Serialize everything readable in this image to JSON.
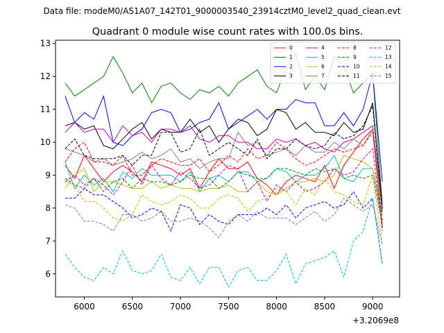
{
  "chart_data": {
    "type": "line",
    "suptitle": "Data file: modeM0/AS1A07_142T01_9000003540_23914cztM0_level2_quad_clean.evt",
    "title": "Quadrant 0 module wise count rates with 100.0s bins.",
    "xlabel": "",
    "ylabel": "",
    "x_offset_label": "+3.2069e8",
    "xlim": [
      5700,
      9280
    ],
    "ylim": [
      5.3,
      13.1
    ],
    "xticks": [
      6000,
      6500,
      7000,
      7500,
      8000,
      8500,
      9000
    ],
    "xtick_labels": [
      "6000",
      "6500",
      "7000",
      "7500",
      "8000",
      "8500",
      "9000"
    ],
    "yticks": [
      6,
      7,
      8,
      9,
      10,
      11,
      12,
      13
    ],
    "ytick_labels": [
      "6",
      "7",
      "8",
      "9",
      "10",
      "11",
      "12",
      "13"
    ],
    "legend": {
      "location": "upper-right",
      "columns": 4
    },
    "x": [
      5800,
      5900,
      6000,
      6100,
      6200,
      6300,
      6400,
      6500,
      6600,
      6700,
      6800,
      6900,
      7000,
      7100,
      7200,
      7300,
      7400,
      7500,
      7600,
      7700,
      7800,
      7900,
      8000,
      8100,
      8200,
      8300,
      8400,
      8500,
      8600,
      8700,
      8800,
      8900,
      9000,
      9100
    ],
    "series": [
      {
        "name": "0",
        "color": "#ff0000",
        "dash": "solid",
        "values": [
          9.3,
          8.9,
          9.6,
          9.2,
          8.8,
          9.1,
          9.3,
          9.1,
          8.8,
          9.4,
          9.3,
          9.2,
          9.0,
          9.2,
          8.6,
          9.1,
          9.5,
          9.2,
          9.2,
          9.4,
          8.9,
          8.7,
          8.4,
          8.8,
          9.0,
          8.9,
          8.8,
          9.3,
          8.6,
          9.3,
          9.7,
          10.1,
          10.4,
          7.4
        ]
      },
      {
        "name": "1",
        "color": "#008000",
        "dash": "solid",
        "values": [
          11.8,
          11.4,
          11.6,
          11.8,
          12.0,
          12.6,
          12.1,
          11.5,
          11.8,
          11.2,
          11.7,
          11.8,
          11.5,
          11.3,
          11.6,
          11.5,
          11.7,
          11.4,
          11.8,
          12.0,
          12.2,
          11.7,
          11.5,
          12.3,
          12.7,
          11.6,
          12.0,
          11.6,
          12.6,
          12.3,
          11.5,
          11.8,
          12.1,
          8.1
        ]
      },
      {
        "name": "2",
        "color": "#0000ff",
        "dash": "solid",
        "values": [
          11.4,
          10.6,
          10.9,
          10.7,
          11.4,
          10.0,
          9.9,
          10.2,
          10.4,
          10.9,
          11.0,
          10.9,
          10.3,
          10.4,
          10.6,
          10.7,
          11.2,
          10.4,
          10.6,
          10.8,
          11.0,
          10.7,
          11.0,
          11.0,
          11.3,
          11.2,
          11.2,
          10.5,
          10.5,
          10.9,
          10.5,
          11.0,
          12.1,
          8.8
        ]
      },
      {
        "name": "3",
        "color": "#000000",
        "dash": "solid",
        "values": [
          10.5,
          10.6,
          10.4,
          10.5,
          9.9,
          9.8,
          10.1,
          10.4,
          10.6,
          10.1,
          10.4,
          10.3,
          10.3,
          10.7,
          10.3,
          10.5,
          10.0,
          10.4,
          10.7,
          10.6,
          10.2,
          10.4,
          11.0,
          10.9,
          10.4,
          10.6,
          10.3,
          10.3,
          10.2,
          10.6,
          10.3,
          10.4,
          11.2,
          8.0
        ]
      },
      {
        "name": "4",
        "color": "#bf00bf",
        "dash": "solid",
        "values": [
          10.3,
          10.6,
          10.3,
          10.4,
          10.4,
          10.0,
          10.5,
          10.2,
          10.3,
          10.0,
          10.4,
          10.4,
          10.3,
          10.5,
          10.1,
          10.0,
          10.2,
          10.2,
          10.0,
          10.0,
          9.8,
          9.8,
          10.1,
          10.0,
          10.1,
          9.9,
          10.0,
          9.8,
          9.7,
          10.0,
          10.1,
          10.3,
          10.5,
          8.0
        ]
      },
      {
        "name": "5",
        "color": "#00bfbf",
        "dash": "solid",
        "values": [
          9.4,
          8.6,
          9.0,
          8.7,
          8.9,
          8.5,
          9.1,
          8.9,
          9.2,
          9.0,
          9.0,
          9.0,
          8.8,
          9.1,
          8.5,
          8.9,
          9.0,
          8.8,
          9.1,
          9.1,
          8.8,
          8.9,
          9.2,
          9.1,
          8.8,
          9.0,
          9.0,
          9.2,
          9.6,
          8.9,
          8.8,
          9.2,
          9.2,
          7.8
        ]
      },
      {
        "name": "6",
        "color": "#bfbf00",
        "dash": "solid",
        "values": [
          8.6,
          9.0,
          9.2,
          8.5,
          8.8,
          8.8,
          8.7,
          8.6,
          8.6,
          8.8,
          8.6,
          8.7,
          8.6,
          8.6,
          8.5,
          8.6,
          8.6,
          8.7,
          8.5,
          8.5,
          8.8,
          8.5,
          8.4,
          8.6,
          8.8,
          8.8,
          8.9,
          8.8,
          9.0,
          9.6,
          9.5,
          9.4,
          9.2,
          7.6
        ]
      },
      {
        "name": "7",
        "color": "#808080",
        "dash": "solid",
        "values": [
          9.8,
          9.7,
          9.6,
          9.4,
          9.5,
          9.3,
          9.4,
          9.5,
          9.7,
          9.5,
          9.6,
          9.8,
          9.4,
          9.5,
          9.2,
          9.4,
          9.5,
          9.5,
          10.3,
          9.9,
          10.0,
          9.6,
          9.7,
          9.8,
          9.6,
          9.9,
          9.7,
          9.7,
          10.0,
          9.8,
          10.1,
          9.9,
          10.4,
          7.9
        ]
      },
      {
        "name": "8",
        "color": "#ff0000",
        "dash": "dashed",
        "values": [
          9.4,
          9.8,
          10.0,
          9.4,
          9.4,
          9.3,
          9.6,
          9.0,
          9.0,
          9.3,
          9.5,
          9.4,
          9.3,
          9.3,
          9.5,
          9.1,
          9.3,
          9.6,
          9.4,
          9.8,
          9.5,
          9.6,
          10.0,
          9.8,
          9.5,
          9.3,
          9.4,
          9.6,
          9.8,
          9.7,
          9.8,
          9.9,
          10.3,
          7.6
        ]
      },
      {
        "name": "9",
        "color": "#008000",
        "dash": "dashed",
        "values": [
          8.9,
          8.7,
          8.6,
          8.9,
          8.5,
          8.8,
          8.9,
          8.6,
          8.9,
          8.8,
          8.8,
          8.7,
          8.8,
          9.0,
          8.9,
          8.9,
          8.6,
          8.8,
          9.1,
          9.0,
          8.9,
          8.9,
          9.2,
          9.2,
          9.1,
          9.0,
          9.2,
          9.1,
          9.2,
          8.9,
          9.0,
          8.9,
          9.0,
          7.5
        ]
      },
      {
        "name": "10",
        "color": "#0000ff",
        "dash": "dashed",
        "values": [
          8.3,
          8.3,
          8.6,
          8.4,
          8.4,
          8.2,
          8.0,
          7.7,
          7.8,
          8.0,
          7.9,
          7.3,
          8.1,
          8.0,
          7.5,
          7.8,
          7.6,
          7.5,
          7.8,
          7.8,
          7.8,
          8.0,
          7.8,
          8.1,
          7.7,
          8.0,
          8.1,
          8.2,
          8.0,
          8.1,
          8.5,
          8.0,
          8.3,
          6.3
        ]
      },
      {
        "name": "11",
        "color": "#000000",
        "dash": "dashed",
        "values": [
          9.8,
          10.1,
          9.6,
          9.5,
          9.5,
          9.5,
          9.6,
          9.3,
          9.6,
          9.6,
          10.3,
          10.3,
          9.7,
          9.8,
          10.4,
          9.6,
          9.8,
          10.0,
          9.8,
          9.6,
          10.1,
          9.5,
          9.8,
          9.8,
          10.1,
          9.9,
          9.8,
          9.9,
          10.3,
          10.1,
          10.2,
          10.5,
          11.1,
          7.9
        ]
      },
      {
        "name": "12",
        "color": "#bf00bf",
        "dash": "dashed",
        "values": [
          8.8,
          9.0,
          8.7,
          8.9,
          8.7,
          8.4,
          8.8,
          9.3,
          8.7,
          9.3,
          8.9,
          8.7,
          9.1,
          8.9,
          8.6,
          8.7,
          9.0,
          9.3,
          9.2,
          8.5,
          8.8,
          8.2,
          8.7,
          8.5,
          8.8,
          8.5,
          8.6,
          8.8,
          9.2,
          9.0,
          9.1,
          9.5,
          9.8,
          7.3
        ]
      },
      {
        "name": "13",
        "color": "#00bfbf",
        "dash": "dashed",
        "values": [
          6.6,
          6.2,
          5.9,
          5.8,
          6.2,
          6.0,
          6.7,
          6.1,
          6.0,
          6.1,
          6.6,
          5.9,
          5.8,
          6.2,
          5.7,
          6.2,
          6.2,
          5.6,
          6.1,
          6.2,
          5.8,
          5.8,
          6.1,
          6.6,
          5.7,
          6.3,
          6.4,
          6.5,
          6.7,
          5.9,
          7.0,
          7.3,
          8.3,
          6.3
        ]
      },
      {
        "name": "14",
        "color": "#bfbf00",
        "dash": "dashed",
        "values": [
          8.8,
          8.7,
          8.2,
          8.2,
          8.0,
          7.7,
          7.6,
          7.8,
          8.4,
          8.2,
          8.1,
          8.2,
          8.4,
          8.3,
          8.0,
          8.0,
          8.3,
          8.4,
          8.3,
          7.9,
          8.2,
          8.3,
          8.6,
          8.5,
          8.1,
          8.6,
          8.4,
          8.9,
          8.5,
          8.4,
          8.2,
          8.1,
          9.0,
          6.9
        ]
      },
      {
        "name": "15",
        "color": "#808080",
        "dash": "dashed",
        "values": [
          8.1,
          8.0,
          7.6,
          7.6,
          7.5,
          7.3,
          7.8,
          7.8,
          7.6,
          7.7,
          7.9,
          7.6,
          7.6,
          7.7,
          7.6,
          7.4,
          7.1,
          7.6,
          7.8,
          7.6,
          7.9,
          7.7,
          7.7,
          7.7,
          7.5,
          7.7,
          7.9,
          7.6,
          7.8,
          8.3,
          8.1,
          7.9,
          8.1,
          6.9
        ]
      }
    ]
  }
}
